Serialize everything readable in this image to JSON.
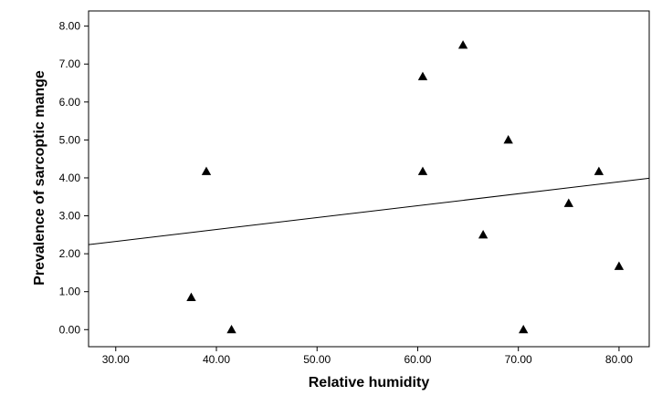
{
  "chart_data": {
    "type": "scatter",
    "title": "",
    "xlabel": "Relative humidity",
    "ylabel": "Prevalence of sarcoptic mange",
    "xlim": [
      27.3,
      83.0
    ],
    "ylim": [
      -0.45,
      8.4
    ],
    "x_ticks": [
      30,
      40,
      50,
      60,
      70,
      80
    ],
    "x_tick_labels": [
      "30.00",
      "40.00",
      "50.00",
      "60.00",
      "70.00",
      "80.00"
    ],
    "y_ticks": [
      0,
      1,
      2,
      3,
      4,
      5,
      6,
      7,
      8
    ],
    "y_tick_labels": [
      "0.00",
      "1.00",
      "2.00",
      "3.00",
      "4.00",
      "5.00",
      "6.00",
      "7.00",
      "8.00"
    ],
    "grid": false,
    "marker": "triangle",
    "marker_color": "#000000",
    "line_color": "#000000",
    "points": [
      {
        "x": 37.5,
        "y": 0.85
      },
      {
        "x": 39.0,
        "y": 4.17
      },
      {
        "x": 41.5,
        "y": 0.0
      },
      {
        "x": 60.5,
        "y": 6.67
      },
      {
        "x": 60.5,
        "y": 4.17
      },
      {
        "x": 64.5,
        "y": 7.5
      },
      {
        "x": 66.5,
        "y": 2.5
      },
      {
        "x": 69.0,
        "y": 5.0
      },
      {
        "x": 70.5,
        "y": 0.0
      },
      {
        "x": 75.0,
        "y": 3.33
      },
      {
        "x": 78.0,
        "y": 4.17
      },
      {
        "x": 80.0,
        "y": 1.67
      }
    ],
    "fit_line": {
      "x": [
        27.3,
        83.0
      ],
      "y": [
        2.24,
        3.99
      ]
    }
  }
}
